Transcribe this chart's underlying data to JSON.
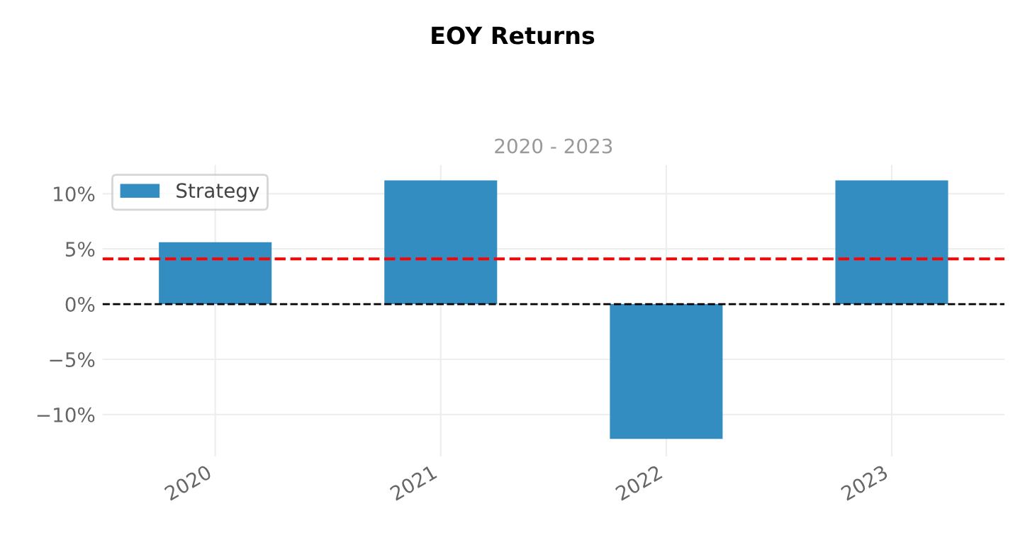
{
  "chart_data": {
    "type": "bar",
    "title": "EOY Returns",
    "subtitle": "2020 - 2023",
    "categories": [
      "2020",
      "2021",
      "2022",
      "2023"
    ],
    "series": [
      {
        "name": "Strategy",
        "color": "#348dc1",
        "values": [
          5.6,
          11.2,
          -12.2,
          11.2
        ]
      }
    ],
    "ylim": [
      -13.8,
      12.6
    ],
    "yticks": [
      {
        "value": -10,
        "label": "−10%"
      },
      {
        "value": -5,
        "label": "−5%"
      },
      {
        "value": 0,
        "label": "0%"
      },
      {
        "value": 5,
        "label": "5%"
      },
      {
        "value": 10,
        "label": "10%"
      }
    ],
    "ref_lines": [
      {
        "axis": "y",
        "value": 0,
        "color": "#000000",
        "line_style": "dashed"
      },
      {
        "axis": "y",
        "value": 4.1,
        "color": "#ff0000",
        "line_style": "dashed"
      }
    ],
    "grid": true,
    "legend": "top left"
  }
}
